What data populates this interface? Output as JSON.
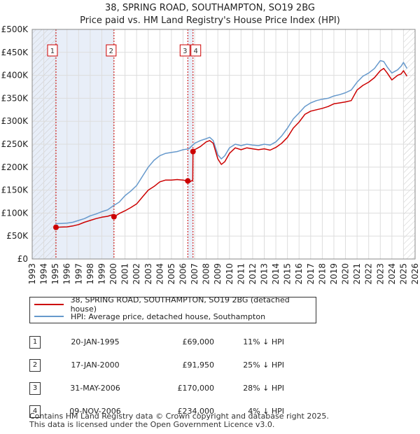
{
  "title_line1": "38, SPRING ROAD, SOUTHAMPTON, SO19 2BG",
  "title_line2": "Price paid vs. HM Land Registry's House Price Index (HPI)",
  "chart_data": {
    "type": "line",
    "title": "Price paid vs. HM Land Registry's House Price Index (HPI)",
    "xlim": [
      1993,
      2026
    ],
    "ylim": [
      0,
      500000
    ],
    "x_ticks": [
      1993,
      1994,
      1995,
      1996,
      1997,
      1998,
      1999,
      2000,
      2001,
      2002,
      2003,
      2004,
      2005,
      2006,
      2007,
      2008,
      2009,
      2010,
      2011,
      2012,
      2013,
      2014,
      2015,
      2016,
      2017,
      2018,
      2019,
      2020,
      2021,
      2022,
      2023,
      2024,
      2025,
      2026
    ],
    "y_ticks": [
      {
        "value": 0,
        "label": "£0"
      },
      {
        "value": 50000,
        "label": "£50K"
      },
      {
        "value": 100000,
        "label": "£100K"
      },
      {
        "value": 150000,
        "label": "£150K"
      },
      {
        "value": 200000,
        "label": "£200K"
      },
      {
        "value": 250000,
        "label": "£250K"
      },
      {
        "value": 300000,
        "label": "£300K"
      },
      {
        "value": 350000,
        "label": "£350K"
      },
      {
        "value": 400000,
        "label": "£400K"
      },
      {
        "value": 450000,
        "label": "£450K"
      },
      {
        "value": 500000,
        "label": "£500K"
      }
    ],
    "shaded_ranges": [
      [
        1993,
        1995.05
      ],
      [
        1995.05,
        2000.05
      ],
      [
        2006.41,
        2006.86
      ]
    ],
    "hatched_ranges": [
      [
        1993,
        1995.05
      ],
      [
        2025.0,
        2026
      ]
    ],
    "series": [
      {
        "name": "38, SPRING ROAD, SOUTHAMPTON, SO19 2BG (detached house)",
        "color": "#cc0000",
        "x": [
          1995.05,
          1995.5,
          1996,
          1996.5,
          1997,
          1997.5,
          1998,
          1998.5,
          1999,
          1999.5,
          2000.0,
          2000.05,
          2000.5,
          2001,
          2001.5,
          2002,
          2002.5,
          2003,
          2003.5,
          2004,
          2004.5,
          2005,
          2005.5,
          2006,
          2006.41,
          2006.6,
          2006.84,
          2006.86,
          2007,
          2007.5,
          2008,
          2008.3,
          2008.6,
          2009,
          2009.3,
          2009.6,
          2010,
          2010.5,
          2011,
          2011.5,
          2012,
          2012.5,
          2013,
          2013.5,
          2014,
          2014.5,
          2015,
          2015.5,
          2016,
          2016.5,
          2017,
          2017.5,
          2018,
          2018.5,
          2019,
          2019.5,
          2020,
          2020.5,
          2021,
          2021.5,
          2022,
          2022.5,
          2023,
          2023.3,
          2023.6,
          2024,
          2024.5,
          2024.8,
          2025,
          2025.3
        ],
        "y": [
          69000,
          69500,
          70000,
          72000,
          75000,
          80000,
          84000,
          88000,
          91000,
          93000,
          97000,
          91950,
          99000,
          105000,
          112000,
          120000,
          135000,
          150000,
          158000,
          168000,
          172000,
          172000,
          173000,
          172000,
          170000,
          168000,
          172000,
          234000,
          238000,
          245000,
          255000,
          258000,
          252000,
          218000,
          206000,
          212000,
          230000,
          242000,
          238000,
          242000,
          240000,
          238000,
          240000,
          237000,
          243000,
          252000,
          265000,
          285000,
          298000,
          315000,
          322000,
          325000,
          328000,
          332000,
          338000,
          340000,
          342000,
          345000,
          368000,
          378000,
          385000,
          395000,
          410000,
          415000,
          405000,
          390000,
          400000,
          403000,
          410000,
          398000
        ]
      },
      {
        "name": "HPI: Average price, detached house, Southampton",
        "color": "#6699cc",
        "x": [
          1995,
          1995.5,
          1996,
          1996.5,
          1997,
          1997.5,
          1998,
          1998.5,
          1999,
          1999.5,
          2000,
          2000.5,
          2001,
          2001.5,
          2002,
          2002.5,
          2003,
          2003.5,
          2004,
          2004.5,
          2005,
          2005.5,
          2006,
          2006.5,
          2007,
          2007.5,
          2008,
          2008.3,
          2008.6,
          2009,
          2009.3,
          2009.6,
          2010,
          2010.5,
          2011,
          2011.5,
          2012,
          2012.5,
          2013,
          2013.5,
          2014,
          2014.5,
          2015,
          2015.5,
          2016,
          2016.5,
          2017,
          2017.5,
          2018,
          2018.5,
          2019,
          2019.5,
          2020,
          2020.5,
          2021,
          2021.5,
          2022,
          2022.5,
          2023,
          2023.3,
          2023.6,
          2024,
          2024.5,
          2024.8,
          2025,
          2025.3
        ],
        "y": [
          77000,
          77500,
          78000,
          80000,
          84000,
          88000,
          94000,
          98000,
          103000,
          107000,
          116000,
          124000,
          138000,
          148000,
          160000,
          180000,
          200000,
          215000,
          225000,
          230000,
          232000,
          234000,
          238000,
          240000,
          252000,
          258000,
          262000,
          265000,
          258000,
          227000,
          218000,
          225000,
          242000,
          250000,
          247000,
          250000,
          248000,
          247000,
          250000,
          248000,
          255000,
          268000,
          285000,
          305000,
          318000,
          332000,
          340000,
          345000,
          348000,
          350000,
          355000,
          358000,
          362000,
          368000,
          385000,
          398000,
          405000,
          415000,
          432000,
          430000,
          418000,
          405000,
          412000,
          420000,
          428000,
          415000
        ]
      }
    ],
    "sales": [
      {
        "label": "1",
        "x": 1995.05,
        "y": 69000
      },
      {
        "label": "2",
        "x": 2000.05,
        "y": 91950
      },
      {
        "label": "3",
        "x": 2006.41,
        "y": 170000
      },
      {
        "label": "4",
        "x": 2006.86,
        "y": 234000
      }
    ]
  },
  "legend": [
    {
      "label": "38, SPRING ROAD, SOUTHAMPTON, SO19 2BG (detached house)",
      "color": "#cc0000"
    },
    {
      "label": "HPI: Average price, detached house, Southampton",
      "color": "#6699cc"
    }
  ],
  "transactions": [
    {
      "num": "1",
      "date": "20-JAN-1995",
      "price": "£69,000",
      "hpi": "11% ↓ HPI"
    },
    {
      "num": "2",
      "date": "17-JAN-2000",
      "price": "£91,950",
      "hpi": "25% ↓ HPI"
    },
    {
      "num": "3",
      "date": "31-MAY-2006",
      "price": "£170,000",
      "hpi": "28% ↓ HPI"
    },
    {
      "num": "4",
      "date": "09-NOV-2006",
      "price": "£234,000",
      "hpi": "4% ↓ HPI"
    }
  ],
  "footer_line1": "Contains HM Land Registry data © Crown copyright and database right 2025.",
  "footer_line2": "This data is licensed under the Open Government Licence v3.0."
}
